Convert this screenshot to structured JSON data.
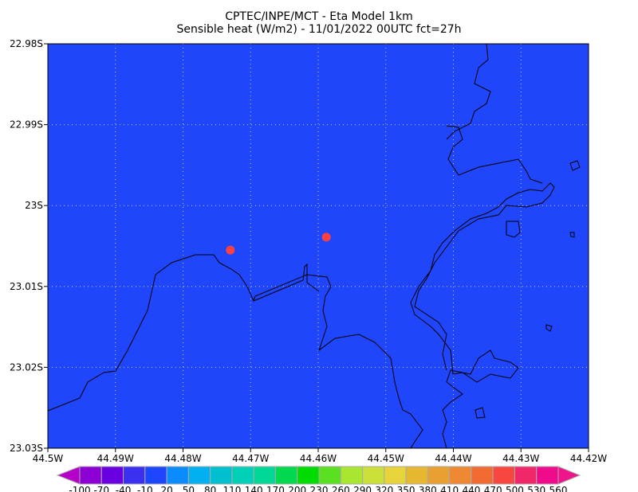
{
  "title_line1": "CPTEC/INPE/MCT -  Eta Model 1km",
  "title_line2": "Sensible heat (W/m2) - 11/01/2022 00UTC fct=27h",
  "chart_data": {
    "type": "heatmap",
    "title": "CPTEC/INPE/MCT -  Eta Model 1km / Sensible heat (W/m2) - 11/01/2022 00UTC fct=27h",
    "xlim": [
      -44.5,
      -44.42
    ],
    "ylim": [
      -23.03,
      -22.98
    ],
    "grid": true,
    "x_ticks": [
      "44.5W",
      "44.49W",
      "44.48W",
      "44.47W",
      "44.46W",
      "44.45W",
      "44.44W",
      "44.43W",
      "44.42W"
    ],
    "y_ticks": [
      "22.98S",
      "22.99S",
      "23S",
      "23.01S",
      "23.02S",
      "23.03S"
    ],
    "field_value_range": "-10 to 20",
    "field_color": "#1f46fb",
    "markers": [
      {
        "lon": -44.473,
        "lat": -23.0055,
        "color": "#ff4040"
      },
      {
        "lon": -44.4588,
        "lat": -23.0039,
        "color": "#ff4040"
      }
    ],
    "colorbar": {
      "labels": [
        "-100",
        "-70",
        "-40",
        "-10",
        "20",
        "50",
        "80",
        "110",
        "140",
        "170",
        "200",
        "230",
        "260",
        "290",
        "320",
        "350",
        "380",
        "410",
        "440",
        "470",
        "500",
        "530",
        "560"
      ],
      "colors": [
        "#8c00d4",
        "#6a00e0",
        "#3c30f0",
        "#1e46ff",
        "#0a8cff",
        "#00b0f0",
        "#00c0d0",
        "#00d0b8",
        "#00d898",
        "#00d850",
        "#00dc00",
        "#5ae020",
        "#a8e632",
        "#cce03a",
        "#e6d43a",
        "#e6b832",
        "#e8a030",
        "#ee8832",
        "#f06a32",
        "#f84640",
        "#f0286a",
        "#f00a8c"
      ],
      "under_color": "#b400c8",
      "over_color": "#f0148c"
    }
  }
}
